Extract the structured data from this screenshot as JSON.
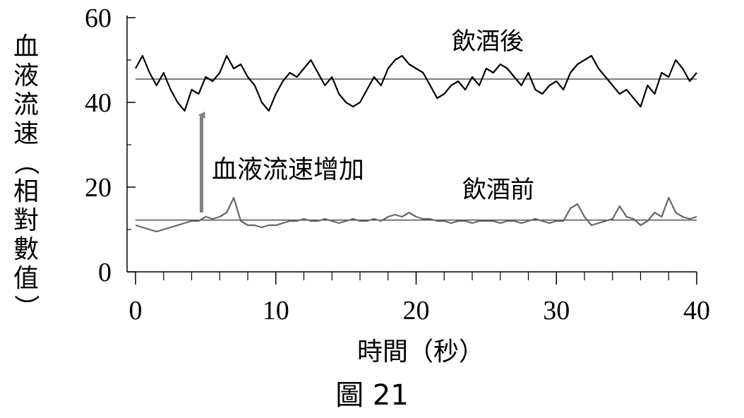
{
  "figure_caption": "圖 21",
  "chart_data": {
    "type": "line",
    "title": "",
    "xlabel": "時間（秒）",
    "ylabel": "血液流速（相對數值）",
    "xlim": [
      0,
      40
    ],
    "ylim": [
      0,
      60
    ],
    "xticks": [
      0,
      10,
      20,
      30,
      40
    ],
    "yticks": [
      0,
      20,
      40,
      60
    ],
    "grid": false,
    "series": [
      {
        "name": "飲酒後",
        "color": "#000000",
        "baseline": 45.5,
        "x": [
          0,
          0.5,
          1,
          1.5,
          2,
          2.5,
          3,
          3.5,
          4,
          4.5,
          5,
          5.5,
          6,
          6.5,
          7,
          7.5,
          8,
          8.5,
          9,
          9.5,
          10,
          10.5,
          11,
          11.5,
          12,
          12.5,
          13,
          13.5,
          14,
          14.5,
          15,
          15.5,
          16,
          16.5,
          17,
          17.5,
          18,
          18.5,
          19,
          19.5,
          20,
          20.5,
          21,
          21.5,
          22,
          22.5,
          23,
          23.5,
          24,
          24.5,
          25,
          25.5,
          26,
          26.5,
          27,
          27.5,
          28,
          28.5,
          29,
          29.5,
          30,
          30.5,
          31,
          31.5,
          32,
          32.5,
          33,
          33.5,
          34,
          34.5,
          35,
          35.5,
          36,
          36.5,
          37,
          37.5,
          38,
          38.5,
          39,
          39.5,
          40
        ],
        "y": [
          48,
          51,
          47,
          44,
          47,
          43,
          40,
          38,
          43,
          42,
          46,
          45,
          47,
          51,
          48,
          49,
          46,
          44,
          40,
          38,
          42,
          45,
          47,
          46,
          48,
          50,
          47,
          44,
          46,
          42,
          40,
          39,
          40,
          43,
          46,
          44,
          48,
          50,
          51,
          49,
          48,
          47,
          44,
          41,
          42,
          44,
          45,
          43,
          46,
          44,
          48,
          47,
          49,
          48,
          46,
          44,
          47,
          43,
          42,
          44,
          45,
          43,
          47,
          49,
          50,
          51,
          48,
          46,
          44,
          42,
          43,
          41,
          39,
          44,
          42,
          47,
          46,
          50,
          48,
          45,
          47
        ]
      },
      {
        "name": "飲酒前",
        "color": "#666666",
        "baseline": 12.2,
        "x": [
          0,
          0.5,
          1,
          1.5,
          2,
          2.5,
          3,
          3.5,
          4,
          4.5,
          5,
          5.5,
          6,
          6.5,
          7,
          7.5,
          8,
          8.5,
          9,
          9.5,
          10,
          10.5,
          11,
          11.5,
          12,
          12.5,
          13,
          13.5,
          14,
          14.5,
          15,
          15.5,
          16,
          16.5,
          17,
          17.5,
          18,
          18.5,
          19,
          19.5,
          20,
          20.5,
          21,
          21.5,
          22,
          22.5,
          23,
          23.5,
          24,
          24.5,
          25,
          25.5,
          26,
          26.5,
          27,
          27.5,
          28,
          28.5,
          29,
          29.5,
          30,
          30.5,
          31,
          31.5,
          32,
          32.5,
          33,
          33.5,
          34,
          34.5,
          35,
          35.5,
          36,
          36.5,
          37,
          37.5,
          38,
          38.5,
          39,
          39.5,
          40
        ],
        "y": [
          11,
          10.5,
          10,
          9.5,
          10,
          10.5,
          11,
          11.5,
          12,
          12,
          13,
          12.5,
          13,
          14,
          17.5,
          12,
          11,
          11,
          10.5,
          11,
          11,
          11.5,
          12,
          12,
          12.5,
          12,
          12,
          12.5,
          12,
          11.5,
          12,
          12.5,
          12,
          12,
          12.5,
          12,
          13,
          13.5,
          13,
          14,
          13,
          12.5,
          12.5,
          12,
          12,
          11.5,
          12,
          12,
          11.5,
          12,
          12,
          12,
          11.5,
          12,
          12,
          11.5,
          12,
          12.5,
          12,
          11.5,
          12,
          12,
          15,
          16,
          13,
          11,
          11.5,
          12,
          12.5,
          15.5,
          13,
          12.5,
          11,
          12,
          14,
          13,
          17.5,
          14,
          13,
          12.5,
          13
        ]
      }
    ],
    "annotations": [
      {
        "text": "血液流速增加",
        "arrow_from": [
          4.7,
          14
        ],
        "arrow_to": [
          4.7,
          37
        ]
      }
    ]
  }
}
